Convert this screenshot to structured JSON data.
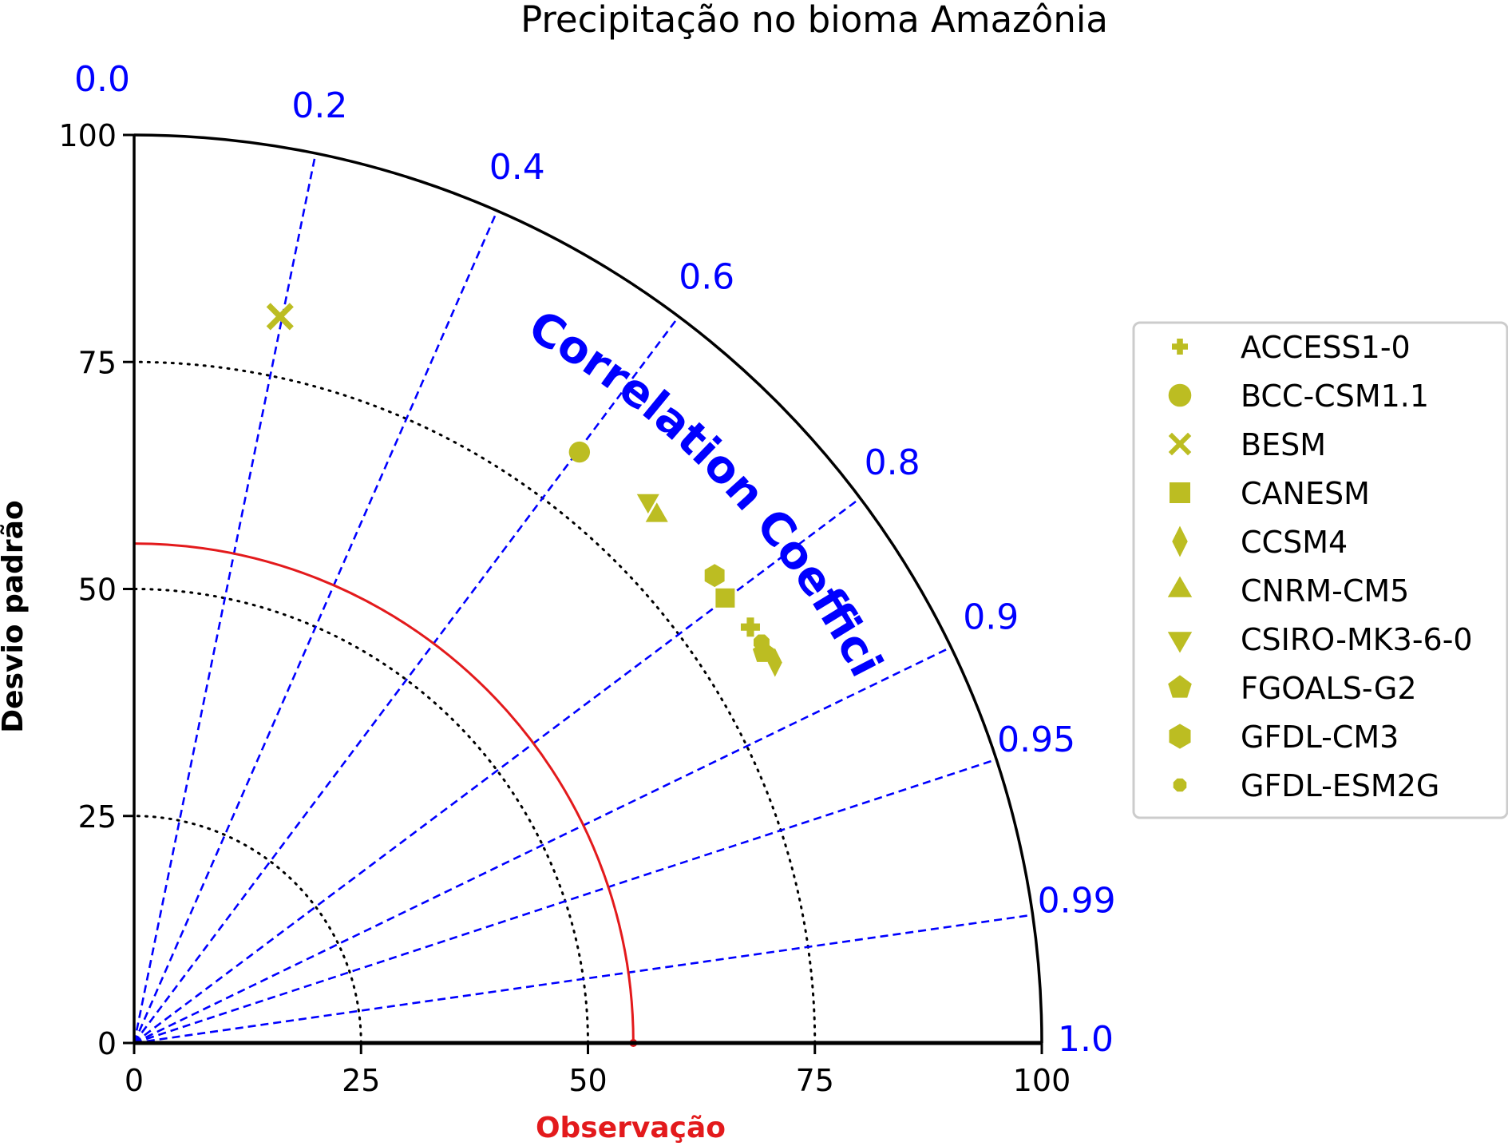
{
  "chart_data": {
    "type": "taylor",
    "title": "Precipitação no bioma Amazônia",
    "ylabel": "Desvio padrão",
    "xlabel": "Observação",
    "correlation_label": "Correlation Coefficient",
    "std_range": [
      0,
      100
    ],
    "std_ticks": [
      0,
      25,
      50,
      75,
      100
    ],
    "std_tick_labels": [
      "0",
      "25",
      "50",
      "75",
      "100"
    ],
    "rms_arcs": [
      25,
      50,
      75
    ],
    "observation_std": 55,
    "correlation_ticks": [
      0.0,
      0.2,
      0.4,
      0.6,
      0.8,
      0.9,
      0.95,
      0.99,
      1.0
    ],
    "correlation_tick_labels": [
      "0.0",
      "0.2",
      "0.4",
      "0.6",
      "0.8",
      "0.9",
      "0.95",
      "0.99",
      "1.0"
    ],
    "legend_position": "right",
    "models": [
      {
        "name": "ACCESS1-0",
        "marker": "plus",
        "std": 81.9,
        "corr": 0.829
      },
      {
        "name": "BCC-CSM1.1",
        "marker": "circle",
        "std": 81.5,
        "corr": 0.602
      },
      {
        "name": "BESM",
        "marker": "x",
        "std": 81.6,
        "corr": 0.197
      },
      {
        "name": "CANESM",
        "marker": "square",
        "std": 81.5,
        "corr": 0.799
      },
      {
        "name": "CCSM4",
        "marker": "diamond",
        "std": 82.1,
        "corr": 0.86
      },
      {
        "name": "CNRM-CM5",
        "marker": "triangle-up",
        "std": 81.8,
        "corr": 0.704
      },
      {
        "name": "CSIRO-MK3-6-0",
        "marker": "triangle-down",
        "std": 82.3,
        "corr": 0.688
      },
      {
        "name": "FGOALS-G2",
        "marker": "pentagon",
        "std": 81.6,
        "corr": 0.85
      },
      {
        "name": "GFDL-CM3",
        "marker": "hexagon",
        "std": 82.1,
        "corr": 0.779
      },
      {
        "name": "GFDL-ESM2G",
        "marker": "octagon",
        "std": 82.0,
        "corr": 0.843
      }
    ],
    "colors": {
      "marker": "#bcbd22",
      "correlation": "#0000ff",
      "observation": "#e31a1c",
      "axis": "#000000"
    }
  }
}
